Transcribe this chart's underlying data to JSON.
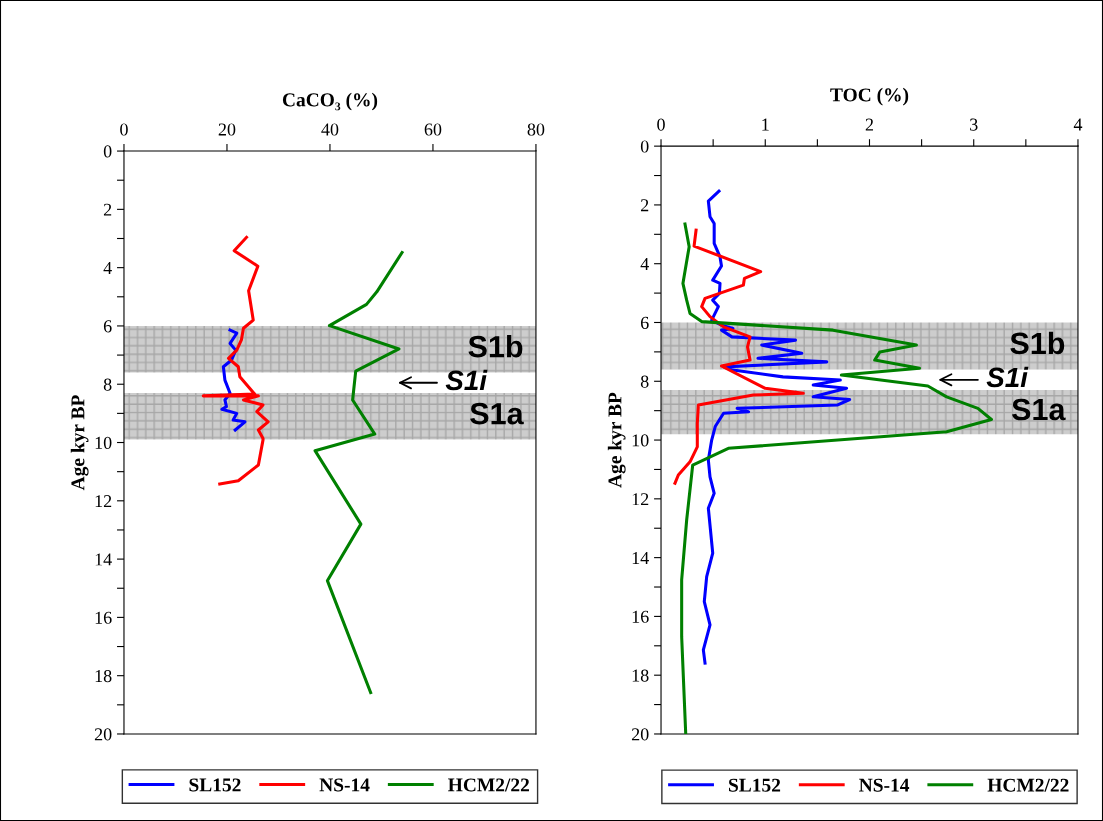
{
  "chart_data": [
    {
      "type": "line",
      "xlabel": "CaCO₃ (%)",
      "ylabel": "Age kyr BP",
      "xlim": [
        0,
        80
      ],
      "xticks": [
        0,
        20,
        40,
        60,
        80
      ],
      "ylim": [
        20,
        0
      ],
      "yticks": [
        0,
        {
          "value": 1,
          "label": null
        },
        2,
        {
          "value": 3,
          "label": null
        },
        4,
        {
          "value": 5,
          "label": null
        },
        6,
        {
          "value": 7,
          "label": null
        },
        8,
        {
          "value": 9,
          "label": null
        },
        10,
        {
          "value": 11,
          "label": null
        },
        12,
        {
          "value": 13,
          "label": null
        },
        14,
        {
          "value": 15,
          "label": null
        },
        16,
        {
          "value": 17,
          "label": null
        },
        18,
        {
          "value": 19,
          "label": null
        },
        20
      ],
      "legend": "bottom",
      "grid": false,
      "bands": [
        {
          "axis": "y",
          "from": 6.0,
          "to": 7.6,
          "label": "S1b",
          "color": "#c4c4c4"
        },
        {
          "axis": "y",
          "from": 8.3,
          "to": 9.9,
          "label": "S1a",
          "color": "#c4c4c4"
        }
      ],
      "annotations": [
        "S1i"
      ],
      "series": [
        {
          "name": "SL152",
          "color": "#0000ff",
          "x": [
            20.6,
            21.9,
            20.6,
            21.7,
            20.9,
            19.3,
            19.6,
            20.6,
            19.6,
            19.9,
            19.0,
            21.9,
            21.2,
            23.5,
            21.6
          ],
          "values": [
            6.14,
            6.25,
            6.6,
            6.83,
            7.17,
            7.4,
            7.86,
            8.31,
            8.54,
            8.77,
            8.86,
            9.0,
            9.23,
            9.29,
            9.57
          ]
        },
        {
          "name": "NS-14",
          "color": "#ff0000",
          "x": [
            23.8,
            21.4,
            26.0,
            24.2,
            25.1,
            23.2,
            22.8,
            21.9,
            20.3,
            22.2,
            22.5,
            25.4,
            15.4,
            26.1,
            23.2,
            27.0,
            25.8,
            28.0,
            26.1,
            27.0,
            27.0,
            26.1,
            22.2,
            18.6
          ],
          "values": [
            2.96,
            3.42,
            3.95,
            4.79,
            5.8,
            6.08,
            6.48,
            6.83,
            7.11,
            7.4,
            7.74,
            8.34,
            8.4,
            8.4,
            8.54,
            8.71,
            8.94,
            9.29,
            9.57,
            9.86,
            9.91,
            10.77,
            11.31,
            11.42
          ]
        },
        {
          "name": "HCM2/22",
          "color": "#008000",
          "x": [
            54.0,
            49.1,
            47.1,
            39.9,
            53.4,
            45.0,
            44.4,
            48.7,
            37.1,
            46.0,
            39.5,
            47.9
          ],
          "values": [
            3.48,
            4.83,
            5.26,
            5.99,
            6.79,
            7.55,
            8.54,
            9.71,
            10.28,
            12.8,
            14.74,
            18.58
          ]
        }
      ]
    },
    {
      "type": "line",
      "xlabel": "TOC (%)",
      "ylabel": "Age kyr BP",
      "xlim": [
        0,
        4
      ],
      "xticks": [
        0,
        {
          "value": 0.5,
          "label": null
        },
        1,
        {
          "value": 1.5,
          "label": null
        },
        2,
        {
          "value": 2.5,
          "label": null
        },
        3,
        {
          "value": 3.5,
          "label": null
        },
        4
      ],
      "ylim": [
        20,
        0
      ],
      "yticks": [
        0,
        {
          "value": 1,
          "label": null
        },
        2,
        {
          "value": 3,
          "label": null
        },
        4,
        {
          "value": 5,
          "label": null
        },
        6,
        {
          "value": 7,
          "label": null
        },
        8,
        {
          "value": 9,
          "label": null
        },
        10,
        {
          "value": 11,
          "label": null
        },
        12,
        {
          "value": 13,
          "label": null
        },
        14,
        {
          "value": 15,
          "label": null
        },
        16,
        {
          "value": 17,
          "label": null
        },
        18,
        {
          "value": 19,
          "label": null
        },
        20
      ],
      "legend": "bottom",
      "grid": false,
      "bands": [
        {
          "axis": "y",
          "from": 6.0,
          "to": 7.6,
          "label": "S1b",
          "color": "#c4c4c4"
        },
        {
          "axis": "y",
          "from": 8.3,
          "to": 9.8,
          "label": "S1a",
          "color": "#c4c4c4"
        }
      ],
      "annotations": [
        "S1i"
      ],
      "series": [
        {
          "name": "SL152",
          "color": "#0000ff",
          "x": [
            0.556,
            0.454,
            0.47,
            0.51,
            0.51,
            0.566,
            0.58,
            0.496,
            0.566,
            0.56,
            0.496,
            0.55,
            0.486,
            0.58,
            0.69,
            0.58,
            0.68,
            1.29,
            0.966,
            1.35,
            0.93,
            1.59,
            0.6,
            0.69,
            1.17,
            1.72,
            1.46,
            1.78,
            1.46,
            1.81,
            1.69,
            0.73,
            0.84,
            0.6,
            0.52,
            0.486,
            0.454,
            0.47,
            0.51,
            0.454,
            0.496,
            0.438,
            0.415,
            0.47,
            0.406,
            0.422
          ],
          "values": [
            1.53,
            1.87,
            2.4,
            2.63,
            3.31,
            3.77,
            4.08,
            4.56,
            4.67,
            5.01,
            5.24,
            5.46,
            5.92,
            6.09,
            6.2,
            6.26,
            6.49,
            6.6,
            6.77,
            7.05,
            7.22,
            7.34,
            7.51,
            7.62,
            7.85,
            7.96,
            8.13,
            8.24,
            8.53,
            8.62,
            8.81,
            8.92,
            9.04,
            9.09,
            9.54,
            10.0,
            10.68,
            11.25,
            11.81,
            12.32,
            13.85,
            14.65,
            15.5,
            16.29,
            17.14,
            17.59
          ]
        },
        {
          "name": "NS-14",
          "color": "#ff0000",
          "x": [
            0.336,
            0.317,
            0.956,
            0.8,
            0.79,
            0.422,
            0.39,
            0.47,
            0.6,
            0.854,
            0.83,
            0.854,
            0.58,
            1.0,
            1.365,
            0.885,
            0.358,
            0.348,
            0.348,
            0.278,
            0.166,
            0.134
          ],
          "values": [
            2.86,
            3.4,
            4.27,
            4.5,
            4.73,
            5.18,
            5.46,
            5.8,
            6.15,
            6.49,
            6.83,
            7.28,
            7.48,
            8.24,
            8.41,
            8.47,
            8.81,
            9.43,
            10.23,
            10.74,
            11.19,
            11.47
          ]
        },
        {
          "name": "HCM2/22",
          "color": "#008000",
          "x": [
            0.23,
            0.27,
            0.21,
            0.246,
            0.278,
            0.39,
            1.65,
            2.45,
            2.1,
            2.05,
            2.48,
            1.73,
            2.56,
            2.74,
            3.04,
            3.17,
            2.74,
            0.646,
            0.304,
            0.246,
            0.198,
            0.198,
            0.237
          ],
          "values": [
            2.65,
            3.42,
            4.67,
            5.24,
            5.69,
            5.97,
            6.26,
            6.77,
            7.0,
            7.28,
            7.56,
            7.79,
            8.16,
            8.53,
            8.92,
            9.3,
            9.72,
            10.28,
            10.85,
            12.72,
            14.76,
            16.69,
            20.0
          ]
        }
      ]
    }
  ]
}
